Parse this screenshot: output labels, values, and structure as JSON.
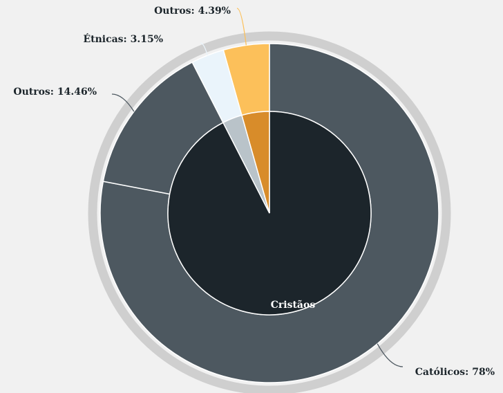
{
  "chart_data": {
    "type": "sunburst",
    "inner": {
      "labels": [
        "Cristãos",
        null,
        null
      ],
      "values": [
        92.46,
        3.15,
        4.39
      ],
      "colors": [
        "#1c252b",
        "#b9c3c9",
        "#d88c2a"
      ]
    },
    "outer": {
      "values": [
        78,
        14.46,
        3.15,
        4.39
      ],
      "value_labels": [
        "Católicos: 78%",
        "Outros: 14.46%",
        "Étnicas: 3.15%",
        "Outros: 4.39%"
      ],
      "colors": [
        "#4d5860",
        "#4d5860",
        "#eaf4fb",
        "#fcc05a"
      ],
      "line_colors": [
        "#4d5860",
        "#4d5860",
        "#eaf4fb",
        "#fcc05a"
      ]
    }
  }
}
